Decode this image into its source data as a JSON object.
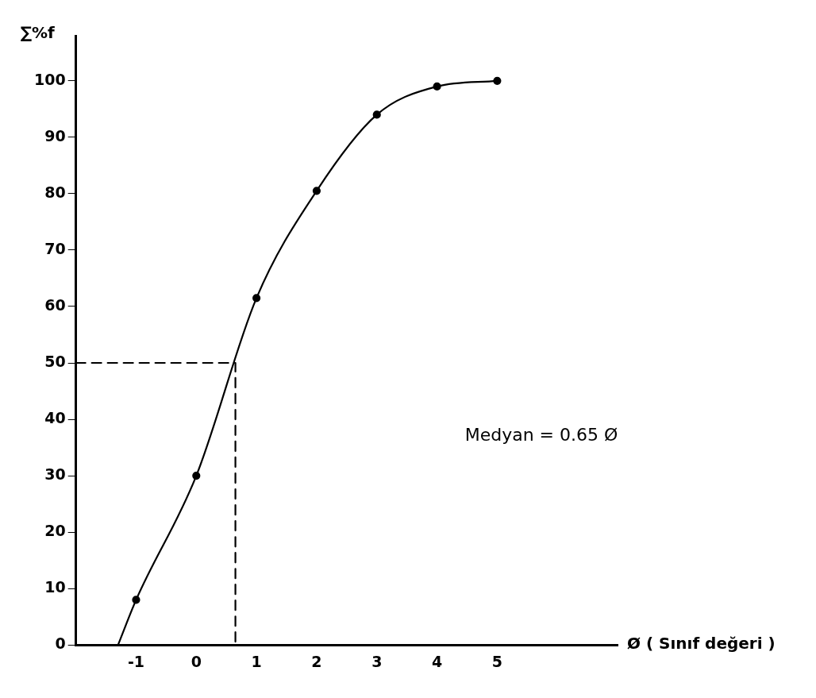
{
  "chart_data": {
    "type": "line",
    "xlabel": "Ø ( Sınıf değeri )",
    "ylabel": "∑%f",
    "annotations": [
      "Medyan = 0.65 Ø"
    ],
    "xlim": [
      -2,
      7
    ],
    "xticks": [
      -1,
      0,
      1,
      2,
      3,
      4,
      5
    ],
    "ylim": [
      0,
      108
    ],
    "yticks": [
      0,
      10,
      20,
      30,
      40,
      50,
      60,
      70,
      80,
      90,
      100
    ],
    "grid": false,
    "legend": false,
    "series": [
      {
        "color": "#000000",
        "marker": "none",
        "line_style": "solid",
        "x": [
          -1.3,
          -1,
          0,
          1,
          2,
          3,
          4,
          5
        ],
        "values": [
          0,
          8,
          30,
          61.5,
          80.5,
          94,
          99,
          100
        ]
      },
      {
        "type": "scatter",
        "color": "#000000",
        "marker": "circle",
        "x": [
          -1,
          0,
          1,
          2,
          3,
          4,
          5
        ],
        "values": [
          8,
          30,
          61.5,
          80.5,
          94,
          99,
          100
        ]
      },
      {
        "color": "#000000",
        "marker": "none",
        "line_style": "dashed",
        "x": [
          -2,
          0.65,
          0.65
        ],
        "values": [
          50,
          50,
          0
        ]
      }
    ]
  }
}
